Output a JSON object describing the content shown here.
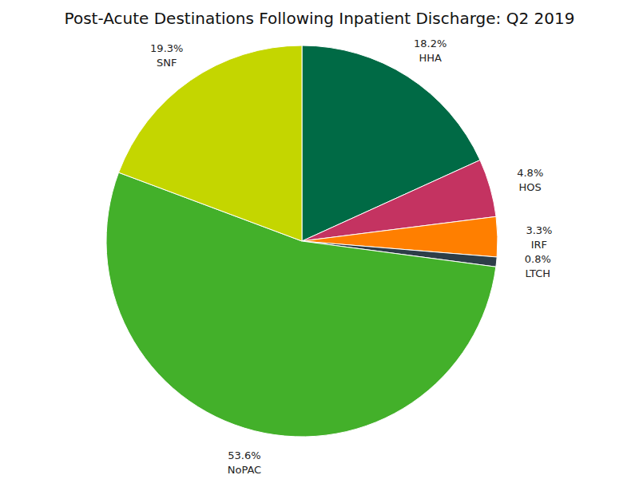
{
  "chart_data": {
    "type": "pie",
    "title": "Post-Acute Destinations Following Inpatient Discharge: Q2 2019",
    "categories": [
      "HHA",
      "HOS",
      "IRF",
      "LTCH",
      "NoPAC",
      "SNF"
    ],
    "values": [
      18.2,
      4.8,
      3.3,
      0.8,
      53.6,
      19.3
    ],
    "value_labels": [
      "18.2%",
      "4.8%",
      "3.3%",
      "0.8%",
      "53.6%",
      "19.3%"
    ],
    "colors": [
      "#006a45",
      "#c43361",
      "#ff7f00",
      "#2d3e48",
      "#43b02a",
      "#c4d600"
    ],
    "data_labels": true
  }
}
